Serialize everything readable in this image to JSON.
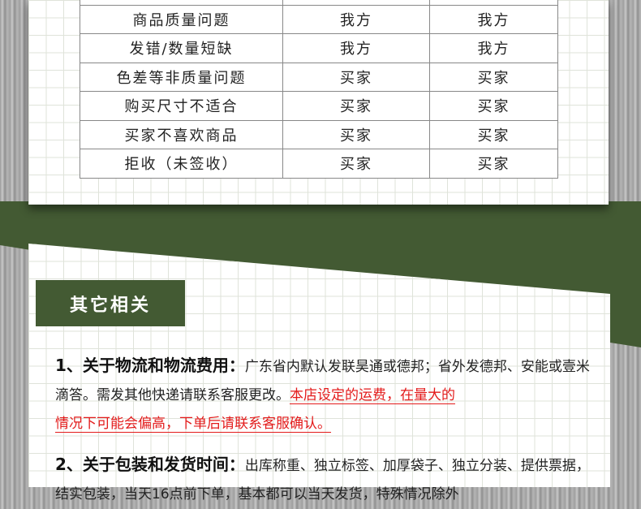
{
  "table": {
    "rows": [
      [
        "",
        "",
        ""
      ],
      [
        "商品质量问题",
        "我方",
        "我方"
      ],
      [
        "发错/数量短缺",
        "我方",
        "我方"
      ],
      [
        "色差等非质量问题",
        "买家",
        "买家"
      ],
      [
        "购买尺寸不适合",
        "买家",
        "买家"
      ],
      [
        "买家不喜欢商品",
        "买家",
        "买家"
      ],
      [
        "拒收（未签收）",
        "买家",
        "买家"
      ]
    ]
  },
  "section": {
    "title": "其它相关"
  },
  "items": [
    {
      "heading": "1、关于物流和物流费用",
      "colon": "：",
      "text": "广东省内默认发联昊通或德邦；省外发德邦、安能或壹米滴答。需发其他快递请联系客服更改。",
      "highlight1": "本店设定的运费，在量大的",
      "highlight2": "情况下可能会偏高，下单后请联系客服确认。"
    },
    {
      "heading": "2、关于包装和发货时间",
      "colon": "：",
      "text": "出库称重、独立标签、加厚袋子、独立分装、提供票据，结实包装，当天16点前下单，基本都可以当天发货，特殊情况除外"
    }
  ],
  "colors": {
    "green": "#435a33",
    "red": "#e31b1b"
  }
}
